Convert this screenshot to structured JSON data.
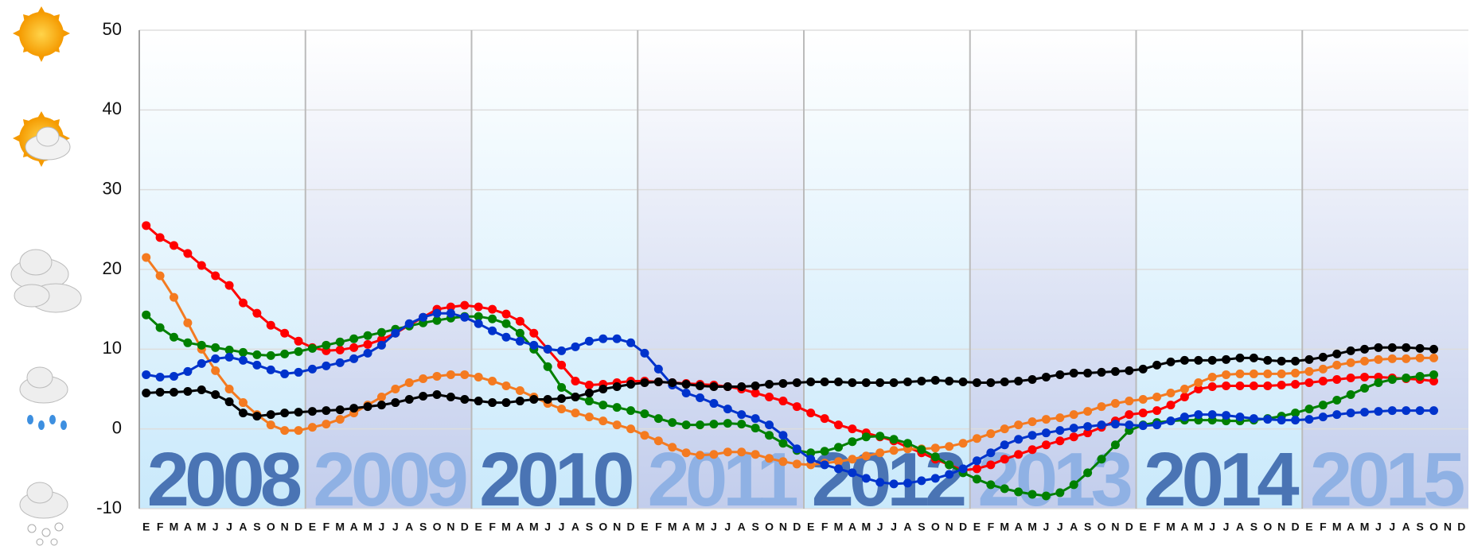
{
  "chart_data": {
    "type": "line",
    "categories": [
      "E",
      "F",
      "M",
      "A",
      "M",
      "J",
      "J",
      "A",
      "S",
      "O",
      "N",
      "D",
      "E",
      "F",
      "M",
      "A",
      "M",
      "J",
      "J",
      "A",
      "S",
      "O",
      "N",
      "D",
      "E",
      "F",
      "M",
      "A",
      "M",
      "J",
      "J",
      "A",
      "S",
      "O",
      "N",
      "D",
      "E",
      "F",
      "M",
      "A",
      "M",
      "J",
      "J",
      "A",
      "S",
      "O",
      "N",
      "D",
      "E",
      "F",
      "M",
      "A",
      "M",
      "J",
      "J",
      "A",
      "S",
      "O",
      "N",
      "D",
      "E",
      "F",
      "M",
      "A",
      "M",
      "J",
      "J",
      "A",
      "S",
      "O",
      "N",
      "D",
      "E",
      "F",
      "M",
      "A",
      "M",
      "J",
      "J",
      "A",
      "S",
      "O",
      "N",
      "D",
      "E",
      "F",
      "M",
      "A",
      "M",
      "J",
      "J",
      "A",
      "S",
      "O",
      "N",
      "D"
    ],
    "years": [
      "2008",
      "2009",
      "2010",
      "2011",
      "2012",
      "2013",
      "2014",
      "2015"
    ],
    "ylim": [
      -10,
      50
    ],
    "yticks": [
      -10,
      0,
      10,
      20,
      30,
      40,
      50
    ],
    "grid": true,
    "series": [
      {
        "color": "#ff0000",
        "values": [
          25.5,
          24,
          23,
          22,
          20.5,
          19.2,
          18,
          15.8,
          14.5,
          13,
          12,
          11,
          10.2,
          9.8,
          9.9,
          10.2,
          10.6,
          11.2,
          12,
          13,
          14,
          15,
          15.3,
          15.5,
          15.3,
          15,
          14.4,
          13.5,
          12,
          10,
          8,
          6,
          5.5,
          5.6,
          5.8,
          6,
          6,
          5.9,
          5.8,
          5.7,
          5.6,
          5.5,
          5.3,
          5,
          4.5,
          4,
          3.5,
          2.8,
          2,
          1.3,
          0.5,
          0,
          -0.5,
          -1,
          -1.5,
          -2.3,
          -3,
          -3.8,
          -4.5,
          -5.2,
          -5,
          -4.5,
          -3.8,
          -3.2,
          -2.6,
          -2,
          -1.5,
          -1,
          -0.5,
          0.2,
          1,
          1.8,
          2,
          2.3,
          3,
          4,
          5,
          5.3,
          5.4,
          5.4,
          5.4,
          5.4,
          5.5,
          5.6,
          5.8,
          6,
          6.2,
          6.4,
          6.5,
          6.5,
          6.4,
          6.3,
          6.2,
          6,
          null,
          null
        ]
      },
      {
        "color": "#f47a20",
        "values": [
          21.5,
          19.2,
          16.5,
          13.3,
          10,
          7.3,
          5,
          3.3,
          1.8,
          0.5,
          -0.2,
          -0.2,
          0.2,
          0.6,
          1.2,
          2,
          3,
          4,
          5,
          5.8,
          6.3,
          6.6,
          6.8,
          6.8,
          6.5,
          6,
          5.4,
          4.8,
          4,
          3.2,
          2.5,
          2,
          1.5,
          1,
          0.5,
          0,
          -0.8,
          -1.5,
          -2.3,
          -3,
          -3.3,
          -3.2,
          -2.9,
          -2.9,
          -3.2,
          -3.7,
          -4.1,
          -4.4,
          -4.5,
          -4.3,
          -4.1,
          -3.8,
          -3.4,
          -3,
          -2.7,
          -2.5,
          -2.5,
          -2.4,
          -2.2,
          -1.8,
          -1.2,
          -0.6,
          0,
          0.5,
          0.9,
          1.2,
          1.4,
          1.8,
          2.2,
          2.8,
          3.2,
          3.5,
          3.7,
          4,
          4.5,
          5,
          5.8,
          6.5,
          6.8,
          6.9,
          6.9,
          6.9,
          6.9,
          7,
          7.2,
          7.5,
          8,
          8.3,
          8.5,
          8.7,
          8.8,
          8.8,
          8.9,
          8.9,
          null,
          null
        ]
      },
      {
        "color": "#008000",
        "values": [
          14.3,
          12.7,
          11.5,
          10.8,
          10.5,
          10.2,
          9.9,
          9.6,
          9.3,
          9.2,
          9.4,
          9.7,
          10.1,
          10.5,
          10.9,
          11.3,
          11.7,
          12.1,
          12.5,
          12.9,
          13.3,
          13.6,
          13.9,
          14.1,
          14.1,
          13.8,
          13.2,
          12,
          10,
          7.8,
          5.2,
          4,
          3.5,
          3,
          2.7,
          2.3,
          1.9,
          1.3,
          0.8,
          0.5,
          0.5,
          0.6,
          0.7,
          0.6,
          0.1,
          -0.8,
          -1.8,
          -2.7,
          -3,
          -2.8,
          -2.3,
          -1.6,
          -1,
          -0.9,
          -1.3,
          -1.8,
          -2.6,
          -3.5,
          -4.5,
          -5.5,
          -6.3,
          -7,
          -7.5,
          -7.9,
          -8.2,
          -8.4,
          -8,
          -7,
          -5.5,
          -3.8,
          -2,
          -0.2,
          0.5,
          0.8,
          1,
          1.1,
          1.1,
          1.1,
          1,
          1,
          1.1,
          1.3,
          1.6,
          2,
          2.5,
          3,
          3.6,
          4.3,
          5.1,
          5.8,
          6.2,
          6.4,
          6.6,
          6.8,
          null,
          null
        ]
      },
      {
        "color": "#0033cc",
        "values": [
          6.8,
          6.5,
          6.6,
          7.2,
          8.2,
          8.8,
          9,
          8.6,
          8,
          7.4,
          6.9,
          7.1,
          7.5,
          7.9,
          8.3,
          8.8,
          9.5,
          10.5,
          12,
          13.2,
          14,
          14.5,
          14.5,
          14,
          13.2,
          12.3,
          11.5,
          11,
          10.5,
          10,
          9.8,
          10.3,
          11,
          11.3,
          11.3,
          10.8,
          9.5,
          7.5,
          5.5,
          4.5,
          3.9,
          3.2,
          2.5,
          1.8,
          1.3,
          0.5,
          -0.8,
          -2.5,
          -3.8,
          -4.5,
          -5,
          -5.5,
          -6.2,
          -6.7,
          -6.9,
          -6.8,
          -6.5,
          -6.2,
          -5.7,
          -5,
          -4,
          -3,
          -2,
          -1.3,
          -0.8,
          -0.5,
          -0.2,
          0.1,
          0.3,
          0.5,
          0.6,
          0.5,
          0.4,
          0.5,
          1,
          1.5,
          1.8,
          1.8,
          1.7,
          1.5,
          1.3,
          1.2,
          1.1,
          1.1,
          1.2,
          1.5,
          1.8,
          2,
          2.1,
          2.2,
          2.3,
          2.3,
          2.3,
          2.3,
          null,
          null
        ]
      },
      {
        "color": "#000000",
        "values": [
          4.5,
          4.6,
          4.6,
          4.7,
          4.9,
          4.3,
          3.4,
          2,
          1.6,
          1.8,
          2,
          2.1,
          2.2,
          2.3,
          2.4,
          2.6,
          2.8,
          3,
          3.3,
          3.7,
          4.1,
          4.3,
          4,
          3.7,
          3.5,
          3.3,
          3.3,
          3.5,
          3.7,
          3.7,
          3.8,
          4,
          4.5,
          5,
          5.3,
          5.6,
          5.8,
          5.9,
          5.8,
          5.6,
          5.4,
          5.3,
          5.3,
          5.3,
          5.4,
          5.6,
          5.7,
          5.8,
          5.9,
          5.9,
          5.9,
          5.8,
          5.8,
          5.8,
          5.8,
          5.9,
          6,
          6.1,
          6,
          5.9,
          5.8,
          5.8,
          5.9,
          6,
          6.2,
          6.5,
          6.8,
          7,
          7,
          7.1,
          7.2,
          7.3,
          7.5,
          8,
          8.4,
          8.6,
          8.6,
          8.6,
          8.7,
          8.9,
          8.9,
          8.6,
          8.5,
          8.5,
          8.7,
          9,
          9.4,
          9.8,
          10,
          10.2,
          10.2,
          10.2,
          10.1,
          10,
          null,
          null
        ]
      }
    ]
  }
}
